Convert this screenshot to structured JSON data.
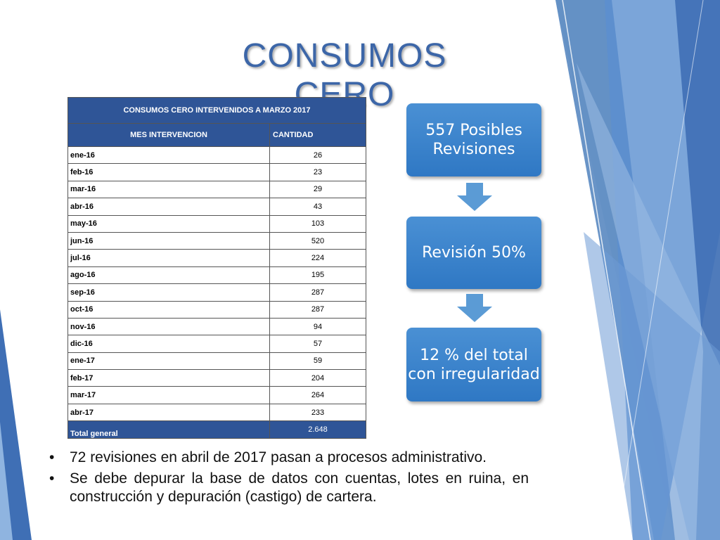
{
  "slide": {
    "title": "CONSUMOS CERO"
  },
  "table": {
    "caption": "CONSUMOS CERO INTERVENIDOS A MARZO 2017",
    "col_mes": "MES INTERVENCION",
    "col_cantidad": "CANTIDAD",
    "rows": [
      {
        "mes": "ene-16",
        "cantidad": "26"
      },
      {
        "mes": "feb-16",
        "cantidad": "23"
      },
      {
        "mes": "mar-16",
        "cantidad": "29"
      },
      {
        "mes": "abr-16",
        "cantidad": "43"
      },
      {
        "mes": "may-16",
        "cantidad": "103"
      },
      {
        "mes": "jun-16",
        "cantidad": "520"
      },
      {
        "mes": "jul-16",
        "cantidad": "224"
      },
      {
        "mes": "ago-16",
        "cantidad": "195"
      },
      {
        "mes": "sep-16",
        "cantidad": "287"
      },
      {
        "mes": "oct-16",
        "cantidad": "287"
      },
      {
        "mes": "nov-16",
        "cantidad": "94"
      },
      {
        "mes": "dic-16",
        "cantidad": "57"
      },
      {
        "mes": "ene-17",
        "cantidad": "59"
      },
      {
        "mes": "feb-17",
        "cantidad": "204"
      },
      {
        "mes": "mar-17",
        "cantidad": "264"
      },
      {
        "mes": "abr-17",
        "cantidad": "233"
      }
    ],
    "total_label": "Total general",
    "total_value": "2.648"
  },
  "flow": {
    "box1": "557 Posibles Revisiones",
    "box2": "Revisión 50%",
    "box3": "12 % del total con irregularidad"
  },
  "bullets": {
    "symbol": "•",
    "item1": "72 revisiones en abril de 2017 pasan a procesos administrativo.",
    "item2": "Se debe depurar la base de datos con cuentas, lotes en ruina, en construcción y depuración (castigo) de cartera."
  },
  "colors": {
    "title": "#3c66a8",
    "table_header": "#2f5597",
    "flow_box": "#2f78c4",
    "arrow": "#5b9bd5"
  }
}
